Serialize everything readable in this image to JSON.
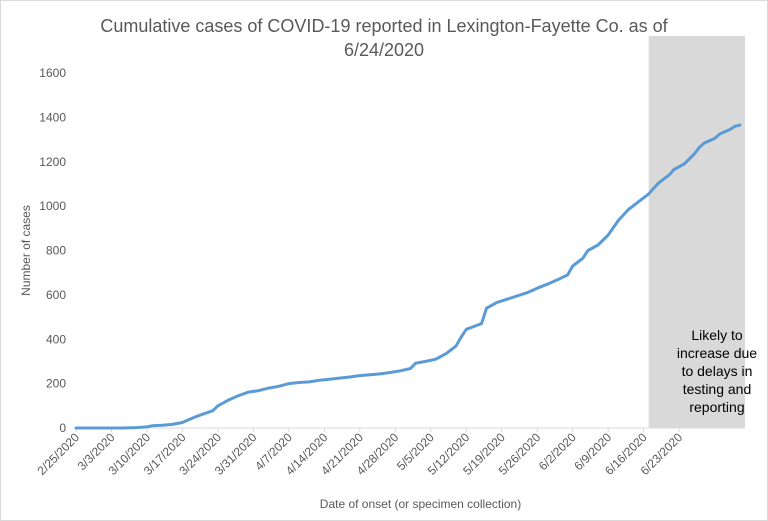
{
  "chart_data": {
    "type": "line",
    "title_lines": [
      "Cumulative cases of COVID-19 reported in Lexington-Fayette Co.  as of",
      "6/24/2020"
    ],
    "xlabel": "Date of onset (or specimen collection)",
    "ylabel": "Number of cases",
    "ylim": [
      0,
      1600
    ],
    "yticks": [
      0,
      200,
      400,
      600,
      800,
      1000,
      1200,
      1400,
      1600
    ],
    "x_tick_labels": [
      "2/25/2020",
      "3/3/2020",
      "3/10/2020",
      "3/17/2020",
      "3/24/2020",
      "3/31/2020",
      "4/7/2020",
      "4/14/2020",
      "4/21/2020",
      "4/28/2020",
      "5/5/2020",
      "5/12/2020",
      "5/19/2020",
      "5/26/2020",
      "6/2/2020",
      "6/9/2020",
      "6/16/2020",
      "6/23/2020"
    ],
    "grid": false,
    "shaded_region": {
      "from": "6/17/2020",
      "to": "6/24/2020",
      "color": "#d9d9d9",
      "label_lines": [
        "Likely to",
        "increase due",
        "to delays in",
        "testing and",
        "reporting"
      ]
    },
    "series": [
      {
        "color": "#5b9bd5",
        "points": [
          [
            "2/25/2020",
            0
          ],
          [
            "3/5/2020",
            0
          ],
          [
            "3/8/2020",
            2
          ],
          [
            "3/10/2020",
            5
          ],
          [
            "3/11/2020",
            10
          ],
          [
            "3/13/2020",
            12
          ],
          [
            "3/15/2020",
            16
          ],
          [
            "3/17/2020",
            25
          ],
          [
            "3/19/2020",
            45
          ],
          [
            "3/21/2020",
            62
          ],
          [
            "3/23/2020",
            78
          ],
          [
            "3/24/2020",
            100
          ],
          [
            "3/26/2020",
            125
          ],
          [
            "3/28/2020",
            145
          ],
          [
            "3/30/2020",
            162
          ],
          [
            "4/1/2020",
            168
          ],
          [
            "4/3/2020",
            180
          ],
          [
            "4/5/2020",
            188
          ],
          [
            "4/7/2020",
            200
          ],
          [
            "4/9/2020",
            205
          ],
          [
            "4/11/2020",
            208
          ],
          [
            "4/13/2020",
            215
          ],
          [
            "4/15/2020",
            220
          ],
          [
            "4/17/2020",
            225
          ],
          [
            "4/19/2020",
            230
          ],
          [
            "4/21/2020",
            236
          ],
          [
            "4/23/2020",
            240
          ],
          [
            "4/25/2020",
            244
          ],
          [
            "4/27/2020",
            250
          ],
          [
            "4/29/2020",
            258
          ],
          [
            "5/1/2020",
            268
          ],
          [
            "5/2/2020",
            292
          ],
          [
            "5/4/2020",
            300
          ],
          [
            "5/6/2020",
            310
          ],
          [
            "5/8/2020",
            335
          ],
          [
            "5/10/2020",
            370
          ],
          [
            "5/11/2020",
            410
          ],
          [
            "5/12/2020",
            445
          ],
          [
            "5/14/2020",
            462
          ],
          [
            "5/15/2020",
            470
          ],
          [
            "5/16/2020",
            540
          ],
          [
            "5/18/2020",
            565
          ],
          [
            "5/20/2020",
            580
          ],
          [
            "5/22/2020",
            595
          ],
          [
            "5/24/2020",
            610
          ],
          [
            "5/26/2020",
            630
          ],
          [
            "5/28/2020",
            648
          ],
          [
            "5/30/2020",
            668
          ],
          [
            "6/1/2020",
            690
          ],
          [
            "6/2/2020",
            730
          ],
          [
            "6/4/2020",
            765
          ],
          [
            "6/5/2020",
            800
          ],
          [
            "6/7/2020",
            825
          ],
          [
            "6/9/2020",
            870
          ],
          [
            "6/11/2020",
            935
          ],
          [
            "6/13/2020",
            985
          ],
          [
            "6/15/2020",
            1020
          ],
          [
            "6/17/2020",
            1055
          ],
          [
            "6/19/2020",
            1105
          ],
          [
            "6/21/2020",
            1140
          ],
          [
            "6/22/2020",
            1165
          ],
          [
            "6/24/2020",
            1190
          ],
          [
            "6/26/2020",
            1235
          ],
          [
            "6/27/2020",
            1265
          ],
          [
            "6/28/2020",
            1285
          ],
          [
            "6/30/2020",
            1305
          ],
          [
            "7/1/2020",
            1325
          ],
          [
            "7/3/2020",
            1345
          ],
          [
            "7/4/2020",
            1360
          ],
          [
            "7/5/2020",
            1365
          ]
        ]
      }
    ]
  }
}
